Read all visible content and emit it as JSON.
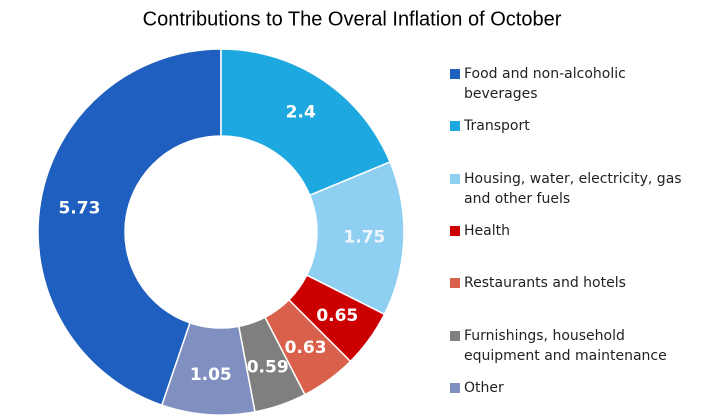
{
  "chart_data": {
    "type": "donut",
    "title": "Contributions to The Overal Inflation of October",
    "categories": [
      "Food and non-alcoholic beverages",
      "Transport",
      "Housing, water, electricity, gas and other fuels",
      "Health",
      "Restaurants and hotels",
      "Furnishings, household equipment and maintenance",
      "Other"
    ],
    "values": [
      5.73,
      2.4,
      1.75,
      0.65,
      0.63,
      0.59,
      1.05
    ],
    "colors": [
      "#1f5fbf",
      "#1ea8e0",
      "#8fd0f2",
      "#cc0000",
      "#d9604a",
      "#7f7f7f",
      "#7f8fc0"
    ],
    "legend": "right"
  }
}
